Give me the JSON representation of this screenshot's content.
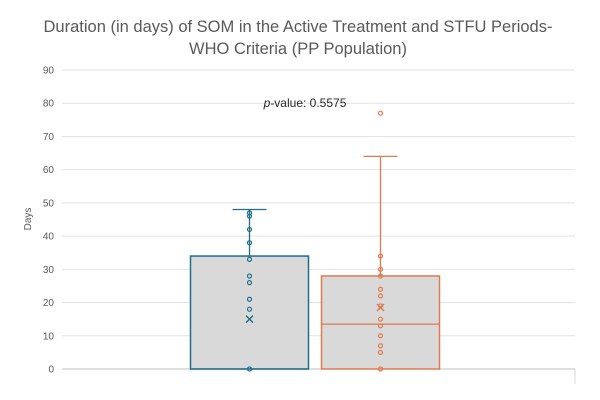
{
  "chart_data": {
    "type": "box",
    "title_lines": [
      "Duration (in days) of SOM in the Active Treatment and STFU Periods-",
      "WHO Criteria (PP Population)"
    ],
    "ylabel": "Days",
    "ylim": [
      0,
      90
    ],
    "yticks": [
      0,
      10,
      20,
      30,
      40,
      50,
      60,
      70,
      80,
      90
    ],
    "grid": true,
    "annotation": {
      "italic": "p",
      "text": "-value: 0.5575"
    },
    "series": [
      {
        "color": "#1f6e8c",
        "min": 0,
        "q1": 0,
        "median": 0,
        "q3": 34,
        "max": 48,
        "mean": 15,
        "points": [
          0,
          18,
          21,
          26,
          28,
          33,
          38,
          42,
          46,
          47
        ]
      },
      {
        "color": "#e07b4f",
        "min": 0,
        "q1": 0,
        "median": 13.5,
        "q3": 28,
        "max": 64,
        "mean": 18.5,
        "points": [
          0,
          5,
          7,
          10,
          13,
          15,
          19,
          22,
          24,
          28,
          30,
          34,
          77
        ]
      }
    ]
  }
}
